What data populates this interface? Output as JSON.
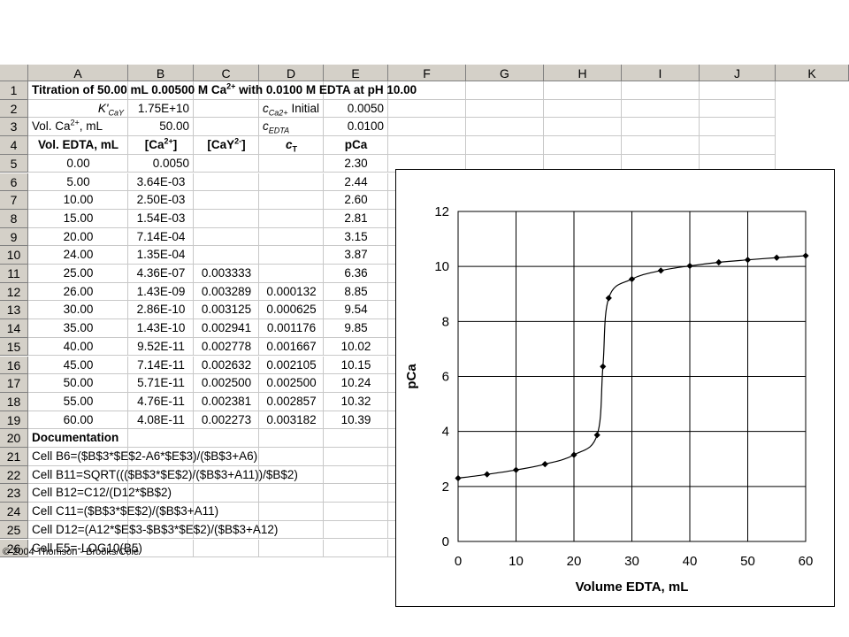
{
  "columns": [
    "A",
    "B",
    "C",
    "D",
    "E",
    "F",
    "G",
    "H",
    "I",
    "J",
    "K"
  ],
  "rows": [
    "1",
    "2",
    "3",
    "4",
    "5",
    "6",
    "7",
    "8",
    "9",
    "10",
    "11",
    "12",
    "13",
    "14",
    "15",
    "16",
    "17",
    "18",
    "19",
    "20",
    "21",
    "22",
    "23",
    "24",
    "25",
    "26"
  ],
  "title": "Titration of 50.00 mL 0.00500 M Ca2+ with 0.0100 M EDTA at pH 10.00",
  "params": {
    "k_label": "K'CaY",
    "k_value": "1.75E+10",
    "vol_label": "Vol. Ca2+, mL",
    "vol_value": "50.00",
    "initial_label": "Initial",
    "c_ca_label": "cCa2+",
    "c_ca_value": "0.0050",
    "c_edta_label": "cEDTA",
    "c_edta_value": "0.0100"
  },
  "table_headers": [
    "Vol. EDTA, mL",
    "[Ca2+]",
    "[CaY2-]",
    "cT",
    "pCa"
  ],
  "table_rows": [
    [
      "0.00",
      "0.0050",
      "",
      "",
      "2.30"
    ],
    [
      "5.00",
      "3.64E-03",
      "",
      "",
      "2.44"
    ],
    [
      "10.00",
      "2.50E-03",
      "",
      "",
      "2.60"
    ],
    [
      "15.00",
      "1.54E-03",
      "",
      "",
      "2.81"
    ],
    [
      "20.00",
      "7.14E-04",
      "",
      "",
      "3.15"
    ],
    [
      "24.00",
      "1.35E-04",
      "",
      "",
      "3.87"
    ],
    [
      "25.00",
      "4.36E-07",
      "0.003333",
      "",
      "6.36"
    ],
    [
      "26.00",
      "1.43E-09",
      "0.003289",
      "0.000132",
      "8.85"
    ],
    [
      "30.00",
      "2.86E-10",
      "0.003125",
      "0.000625",
      "9.54"
    ],
    [
      "35.00",
      "1.43E-10",
      "0.002941",
      "0.001176",
      "9.85"
    ],
    [
      "40.00",
      "9.52E-11",
      "0.002778",
      "0.001667",
      "10.02"
    ],
    [
      "45.00",
      "7.14E-11",
      "0.002632",
      "0.002105",
      "10.15"
    ],
    [
      "50.00",
      "5.71E-11",
      "0.002500",
      "0.002500",
      "10.24"
    ],
    [
      "55.00",
      "4.76E-11",
      "0.002381",
      "0.002857",
      "10.32"
    ],
    [
      "60.00",
      "4.08E-11",
      "0.002273",
      "0.003182",
      "10.39"
    ]
  ],
  "documentation_label": "Documentation",
  "documentation": [
    "Cell B6=($B$3*$E$2-A6*$E$3)/($B$3+A6)",
    "Cell B11=SQRT((($B$3*$E$2)/($B$3+A11))/$B$2)",
    "Cell B12=C12/(D12*$B$2)",
    "Cell C11=($B$3*$E$2)/($B$3+A11)",
    "Cell D12=(A12*$E$3-$B$3*$E$2)/($B$3+A12)",
    "Cell E5=-LOG10(B5)"
  ],
  "copyright": "© 2004 Thomson - Brooks/Cole",
  "chart_data": {
    "type": "scatter",
    "title": "",
    "xlabel": "Volume EDTA, mL",
    "ylabel": "pCa",
    "xlim": [
      0,
      60
    ],
    "ylim": [
      0,
      12
    ],
    "xticks": [
      0,
      10,
      20,
      30,
      40,
      50,
      60
    ],
    "yticks": [
      0,
      2,
      4,
      6,
      8,
      10,
      12
    ],
    "grid": true,
    "x": [
      0,
      5,
      10,
      15,
      20,
      24,
      25,
      26,
      30,
      35,
      40,
      45,
      50,
      55,
      60
    ],
    "y": [
      2.3,
      2.44,
      2.6,
      2.81,
      3.15,
      3.87,
      6.36,
      8.85,
      9.54,
      9.85,
      10.02,
      10.15,
      10.24,
      10.32,
      10.39
    ],
    "marker": "diamond",
    "line": "smooth",
    "color": "#000000"
  }
}
